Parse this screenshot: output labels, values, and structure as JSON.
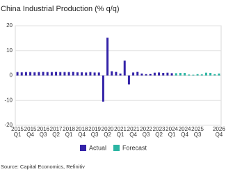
{
  "chart_data": {
    "type": "bar",
    "title": "China Industrial Production (% q/q)",
    "source": "Source: Capital Economics, Refinitiv",
    "categories": [
      "2015 Q1",
      null,
      null,
      "2015 Q4",
      null,
      null,
      "2016 Q3",
      null,
      null,
      "2017 Q2",
      null,
      null,
      "2018 Q1",
      null,
      null,
      "2018 Q4",
      null,
      null,
      "2019 Q3",
      null,
      null,
      "2020 Q2",
      null,
      null,
      "2021 Q1",
      null,
      null,
      "2021 Q4",
      null,
      null,
      "2022 Q3",
      null,
      null,
      "2023 Q2",
      null,
      null,
      "2024 Q1",
      null,
      null,
      "2024 Q4",
      null,
      null,
      "2025 Q3",
      null,
      null,
      null,
      null,
      "2026 Q4"
    ],
    "series": [
      {
        "name": "Actual",
        "color": "#3323a8",
        "values": [
          1.4,
          1.3,
          1.4,
          1.4,
          1.3,
          1.4,
          1.5,
          1.4,
          1.4,
          1.5,
          1.4,
          1.4,
          1.4,
          1.5,
          1.3,
          1.3,
          1.2,
          1.4,
          1.2,
          1.2,
          -10.5,
          15.2,
          1.7,
          1.5,
          0.8,
          6.0,
          -3.6,
          1.2,
          1.5,
          0.8,
          0.6,
          0.7,
          1.1,
          1.2,
          1.0,
          1.1,
          0.9,
          null,
          null,
          null,
          null,
          null,
          null,
          null,
          null,
          null,
          null,
          null
        ]
      },
      {
        "name": "Forecast",
        "color": "#2bb5a3",
        "values": [
          null,
          null,
          null,
          null,
          null,
          null,
          null,
          null,
          null,
          null,
          null,
          null,
          null,
          null,
          null,
          null,
          null,
          null,
          null,
          null,
          null,
          null,
          null,
          null,
          null,
          null,
          null,
          null,
          null,
          null,
          null,
          null,
          null,
          null,
          null,
          null,
          null,
          0.9,
          1.0,
          1.0,
          0.4,
          0.3,
          0.6,
          0.5,
          1.1,
          1.0,
          0.6,
          0.8
        ]
      }
    ],
    "ylim": [
      -20,
      20
    ],
    "yticks": [
      -20,
      -10,
      0,
      10,
      20
    ],
    "grid": true,
    "legend": "bottom"
  }
}
